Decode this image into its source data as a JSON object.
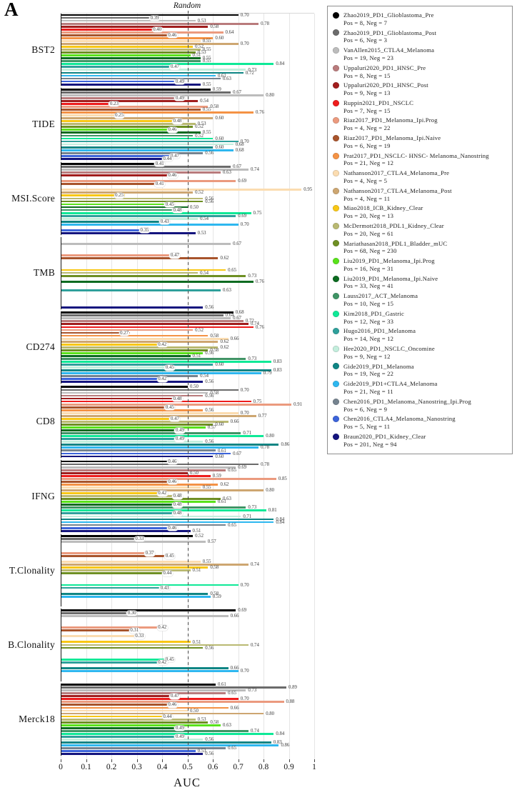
{
  "panel_letter": "A",
  "x_axis": {
    "title": "AUC",
    "ticks": [
      "0",
      "0.1",
      "0.2",
      "0.3",
      "0.4",
      "0.5",
      "0.6",
      "0.7",
      "0.8",
      "0.9",
      "1"
    ],
    "min": 0,
    "max": 1
  },
  "chart_data": {
    "type": "bar",
    "orientation": "horizontal",
    "grid": "vertical-light",
    "legend_position": "right",
    "reference_line": {
      "value": 0.5,
      "label": "Random",
      "style": "dashed"
    },
    "value_label_rule": "values below 0.5 drawn in white bubble at bar end; others plain right of bar",
    "studies": [
      {
        "name": "Zhao2019_PD1_Glioblastoma_Pre",
        "pos_neg": "Pos = 8, Neg = 7",
        "color": "#000000"
      },
      {
        "name": "Zhao2019_PD1_Glioblastoma_Post",
        "pos_neg": "Pos = 6, Neg = 3",
        "color": "#6b6b6b"
      },
      {
        "name": "VanAllen2015_CTLA4_Melanoma",
        "pos_neg": "Pos = 19, Neg = 23",
        "color": "#bcbcbc"
      },
      {
        "name": "Uppaluri2020_PD1_HNSC_Pre",
        "pos_neg": "Pos = 8, Neg = 15",
        "color": "#b97b7c"
      },
      {
        "name": "Uppaluri2020_PD1_HNSC_Post",
        "pos_neg": "Pos = 9, Neg = 13",
        "color": "#a11d1d"
      },
      {
        "name": "Ruppin2021_PD1_NSCLC",
        "pos_neg": "Pos = 7, Neg = 15",
        "color": "#ee1c1c"
      },
      {
        "name": "Riaz2017_PD1_Melanoma_Ipi.Prog",
        "pos_neg": "Pos = 4, Neg = 22",
        "color": "#eb9a7e"
      },
      {
        "name": "Riaz2017_PD1_Melanoma_Ipi.Naive",
        "pos_neg": "Pos = 6, Neg = 19",
        "color": "#a8542c"
      },
      {
        "name": "Prat2017_PD1_NSCLC- HNSC- Melanoma_Nanostring",
        "pos_neg": "Pos = 21, Neg = 12",
        "color": "#f49245"
      },
      {
        "name": "Nathanson2017_CTLA4_Melanoma_Pre",
        "pos_neg": "Pos = 4, Neg = 5",
        "color": "#fbdcb0"
      },
      {
        "name": "Nathanson2017_CTLA4_Melanoma_Post",
        "pos_neg": "Pos = 4, Neg = 11",
        "color": "#cda671"
      },
      {
        "name": "Miao2018_ICB_Kidney_Clear",
        "pos_neg": "Pos = 20, Neg = 13",
        "color": "#f8c715"
      },
      {
        "name": "McDermott2018_PDL1_Kidney_Clear",
        "pos_neg": "Pos = 20, Neg = 61",
        "color": "#b9b972"
      },
      {
        "name": "Mariathasan2018_PDL1_Bladder_mUC",
        "pos_neg": "Pos = 68, Neg = 230",
        "color": "#6e8f23"
      },
      {
        "name": "Liu2019_PD1_Melanoma_Ipi.Prog",
        "pos_neg": "Pos = 16, Neg = 31",
        "color": "#59e21a"
      },
      {
        "name": "Liu2019_PD1_Melanoma_Ipi.Naive",
        "pos_neg": "Pos = 33, Neg = 41",
        "color": "#0b6b20"
      },
      {
        "name": "Lauss2017_ACT_Melanoma",
        "pos_neg": "Pos = 10, Neg = 15",
        "color": "#3f9465"
      },
      {
        "name": "Kim2018_PD1_Gastric",
        "pos_neg": "Pos = 12, Neg = 33",
        "color": "#0fe997"
      },
      {
        "name": "Hugo2016_PD1_Melanoma",
        "pos_neg": "Pos = 14, Neg = 12",
        "color": "#2fa09b"
      },
      {
        "name": "Hee2020_PD1_NSCLC_Oncomine",
        "pos_neg": "Pos = 9, Neg = 12",
        "color": "#c3eedd"
      },
      {
        "name": "Gide2019_PD1_Melanoma",
        "pos_neg": "Pos = 19, Neg = 22",
        "color": "#0f8584"
      },
      {
        "name": "Gide2019_PD1+CTLA4_Melanoma",
        "pos_neg": "Pos = 21, Neg = 11",
        "color": "#2eb7ef"
      },
      {
        "name": "Chen2016_PD1_Melanoma_Nanostring_Ipi.Prog",
        "pos_neg": "Pos = 6, Neg = 9",
        "color": "#75838f"
      },
      {
        "name": "Chen2016_CTLA4_Melanoma_Nanostring",
        "pos_neg": "Pos = 5, Neg = 11",
        "color": "#3c64da"
      },
      {
        "name": "Braun2020_PD1_Kidney_Clear",
        "pos_neg": "Pos = 201, Neg = 94",
        "color": "#14147e"
      }
    ],
    "groups": [
      {
        "label": "BST2",
        "bars": [
          [
            0,
            0.7
          ],
          [
            1,
            0.39
          ],
          [
            2,
            0.53
          ],
          [
            3,
            0.78
          ],
          [
            4,
            0.58
          ],
          [
            5,
            0.4
          ],
          [
            6,
            0.64
          ],
          [
            7,
            0.46
          ],
          [
            8,
            0.6
          ],
          [
            9,
            0.55
          ],
          [
            10,
            0.7
          ],
          [
            11,
            0.52
          ],
          [
            12,
            0.55
          ],
          [
            13,
            0.53
          ],
          [
            14,
            0.51
          ],
          [
            15,
            0.55
          ],
          [
            16,
            0.55
          ],
          [
            17,
            0.84
          ],
          [
            18,
            0.47
          ],
          [
            19,
            0.73
          ],
          [
            20,
            0.72
          ],
          [
            21,
            0.61
          ],
          [
            22,
            0.63
          ],
          [
            23,
            0.49
          ],
          [
            24,
            0.55
          ]
        ]
      },
      {
        "label": "TIDE",
        "bars": [
          [
            0,
            0.59
          ],
          [
            1,
            0.67
          ],
          [
            2,
            0.8
          ],
          [
            3,
            0.49
          ],
          [
            4,
            0.54
          ],
          [
            5,
            0.23
          ],
          [
            6,
            0.58
          ],
          [
            7,
            0.55
          ],
          [
            8,
            0.76
          ],
          [
            9,
            0.25
          ],
          [
            10,
            0.6
          ],
          [
            11,
            0.48
          ],
          [
            12,
            0.53
          ],
          [
            13,
            0.52
          ],
          [
            14,
            0.46
          ],
          [
            15,
            0.55
          ],
          [
            16,
            0.52
          ],
          [
            17,
            0.6
          ],
          [
            18,
            0.7
          ],
          [
            19,
            0.68
          ],
          [
            20,
            0.6
          ],
          [
            21,
            0.68
          ],
          [
            22,
            0.56
          ],
          [
            23,
            0.47
          ],
          [
            24,
            0.44
          ]
        ]
      },
      {
        "label": "MSI.Score",
        "bars": [
          [
            0,
            0.41
          ],
          [
            1,
            0.67
          ],
          [
            2,
            0.74
          ],
          [
            3,
            0.63
          ],
          [
            4,
            0.46
          ],
          [
            6,
            0.69
          ],
          [
            7,
            0.41
          ],
          [
            9,
            0.95
          ],
          [
            10,
            0.52
          ],
          [
            11,
            0.25
          ],
          [
            12,
            0.56
          ],
          [
            13,
            0.56
          ],
          [
            14,
            0.45
          ],
          [
            15,
            0.5
          ],
          [
            16,
            0.48
          ],
          [
            17,
            0.75
          ],
          [
            18,
            0.69
          ],
          [
            19,
            0.54
          ],
          [
            20,
            0.43
          ],
          [
            21,
            0.7
          ],
          [
            23,
            0.35
          ],
          [
            24,
            0.53
          ]
        ]
      },
      {
        "label": "TMB",
        "bars": [
          [
            2,
            0.67
          ],
          [
            6,
            0.47
          ],
          [
            7,
            0.62
          ],
          [
            11,
            0.65
          ],
          [
            12,
            0.54
          ],
          [
            13,
            0.73
          ],
          [
            15,
            0.76
          ],
          [
            18,
            0.63
          ],
          [
            24,
            0.56
          ]
        ]
      },
      {
        "label": "CD274",
        "bars": [
          [
            0,
            0.68
          ],
          [
            1,
            0.64
          ],
          [
            2,
            0.67
          ],
          [
            3,
            0.72
          ],
          [
            4,
            0.74
          ],
          [
            5,
            0.76
          ],
          [
            6,
            0.52
          ],
          [
            7,
            0.27
          ],
          [
            8,
            0.58
          ],
          [
            9,
            0.66
          ],
          [
            10,
            0.62
          ],
          [
            11,
            0.42
          ],
          [
            12,
            0.62
          ],
          [
            13,
            0.58
          ],
          [
            14,
            0.56
          ],
          [
            15,
            0.51
          ],
          [
            16,
            0.73
          ],
          [
            17,
            0.83
          ],
          [
            18,
            0.6
          ],
          [
            19,
            0.45
          ],
          [
            20,
            0.83
          ],
          [
            21,
            0.79
          ],
          [
            22,
            0.54
          ],
          [
            23,
            0.42
          ],
          [
            24,
            0.56
          ]
        ]
      },
      {
        "label": "CD8",
        "bars": [
          [
            0,
            0.5
          ],
          [
            1,
            0.7
          ],
          [
            2,
            0.58
          ],
          [
            3,
            0.56
          ],
          [
            4,
            0.48
          ],
          [
            5,
            0.75
          ],
          [
            6,
            0.91
          ],
          [
            7,
            0.45
          ],
          [
            8,
            0.56
          ],
          [
            9,
            0.7
          ],
          [
            10,
            0.77
          ],
          [
            11,
            0.47
          ],
          [
            12,
            0.66
          ],
          [
            13,
            0.6
          ],
          [
            14,
            0.57
          ],
          [
            15,
            0.49
          ],
          [
            16,
            0.71
          ],
          [
            17,
            0.8
          ],
          [
            18,
            0.49
          ],
          [
            19,
            0.56
          ],
          [
            20,
            0.86
          ],
          [
            21,
            0.78
          ],
          [
            22,
            0.61
          ],
          [
            23,
            0.67
          ],
          [
            24,
            0.6
          ]
        ]
      },
      {
        "label": "IFNG",
        "bars": [
          [
            0,
            0.46
          ],
          [
            1,
            0.78
          ],
          [
            2,
            0.69
          ],
          [
            3,
            0.65
          ],
          [
            4,
            0.5
          ],
          [
            5,
            0.59
          ],
          [
            6,
            0.85
          ],
          [
            7,
            0.46
          ],
          [
            8,
            0.62
          ],
          [
            9,
            0.55
          ],
          [
            10,
            0.8
          ],
          [
            11,
            0.42
          ],
          [
            12,
            0.48
          ],
          [
            13,
            0.63
          ],
          [
            14,
            0.61
          ],
          [
            15,
            0.48
          ],
          [
            16,
            0.73
          ],
          [
            17,
            0.81
          ],
          [
            18,
            0.48
          ],
          [
            19,
            0.71
          ],
          [
            20,
            0.84
          ],
          [
            21,
            0.84
          ],
          [
            22,
            0.65
          ],
          [
            23,
            0.46
          ],
          [
            24,
            0.51
          ]
        ]
      },
      {
        "label": "T.Clonality",
        "bars": [
          [
            0,
            0.52
          ],
          [
            1,
            0.33
          ],
          [
            2,
            0.57
          ],
          [
            6,
            0.37
          ],
          [
            7,
            0.45
          ],
          [
            9,
            0.55
          ],
          [
            10,
            0.74
          ],
          [
            11,
            0.58
          ],
          [
            12,
            0.51
          ],
          [
            13,
            0.44
          ],
          [
            17,
            0.7
          ],
          [
            18,
            0.43
          ],
          [
            20,
            0.58
          ],
          [
            21,
            0.59
          ]
        ]
      },
      {
        "label": "B.Clonality",
        "bars": [
          [
            0,
            0.69
          ],
          [
            1,
            0.3
          ],
          [
            2,
            0.66
          ],
          [
            6,
            0.42
          ],
          [
            7,
            0.31
          ],
          [
            9,
            0.33
          ],
          [
            11,
            0.51
          ],
          [
            12,
            0.74
          ],
          [
            13,
            0.56
          ],
          [
            17,
            0.45
          ],
          [
            18,
            0.42
          ],
          [
            20,
            0.66
          ],
          [
            21,
            0.7
          ]
        ]
      },
      {
        "label": "Merck18",
        "bars": [
          [
            0,
            0.61
          ],
          [
            1,
            0.89
          ],
          [
            2,
            0.73
          ],
          [
            3,
            0.65
          ],
          [
            4,
            0.47
          ],
          [
            5,
            0.7
          ],
          [
            6,
            0.88
          ],
          [
            7,
            0.46
          ],
          [
            8,
            0.66
          ],
          [
            9,
            0.5
          ],
          [
            10,
            0.8
          ],
          [
            11,
            0.44
          ],
          [
            12,
            0.53
          ],
          [
            13,
            0.58
          ],
          [
            14,
            0.63
          ],
          [
            15,
            0.49
          ],
          [
            16,
            0.74
          ],
          [
            17,
            0.84
          ],
          [
            18,
            0.49
          ],
          [
            19,
            0.56
          ],
          [
            20,
            0.83
          ],
          [
            21,
            0.86
          ],
          [
            22,
            0.65
          ],
          [
            23,
            0.53
          ],
          [
            24,
            0.56
          ]
        ]
      }
    ]
  },
  "random_label": "Random"
}
